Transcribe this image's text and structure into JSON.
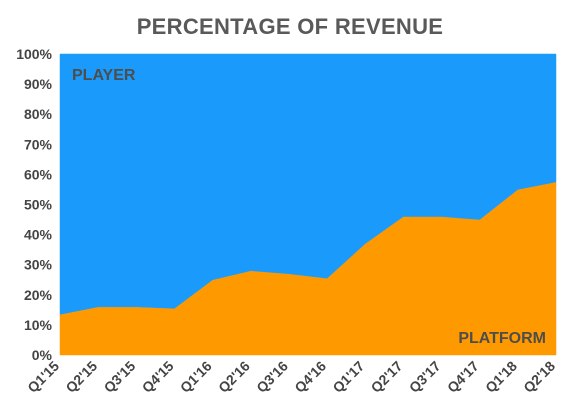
{
  "chart_data": {
    "type": "area",
    "stacked": true,
    "percent": true,
    "title": "PERCENTAGE OF REVENUE",
    "xlabel": "",
    "ylabel": "",
    "categories": [
      "Q1'15",
      "Q2'15",
      "Q3'15",
      "Q4'15",
      "Q1'16",
      "Q2'16",
      "Q3'16",
      "Q4'16",
      "Q1'17",
      "Q2'17",
      "Q3'17",
      "Q4'17",
      "Q1'18",
      "Q2'18"
    ],
    "y_ticks": [
      "0%",
      "10%",
      "20%",
      "30%",
      "40%",
      "50%",
      "60%",
      "70%",
      "80%",
      "90%",
      "100%"
    ],
    "ylim": [
      0,
      100
    ],
    "grid": false,
    "legend": "none",
    "series": [
      {
        "name": "PLATFORM",
        "color": "#ff9900",
        "values": [
          13.5,
          16,
          16,
          15.5,
          25,
          28,
          27,
          25.5,
          37,
          46,
          46,
          45,
          55,
          57.5
        ]
      },
      {
        "name": "PLAYER",
        "color": "#1a9bfc",
        "values": [
          86.5,
          84,
          84,
          84.5,
          75,
          72,
          73,
          74.5,
          63,
          54,
          54,
          55,
          45,
          42.5
        ]
      }
    ]
  }
}
